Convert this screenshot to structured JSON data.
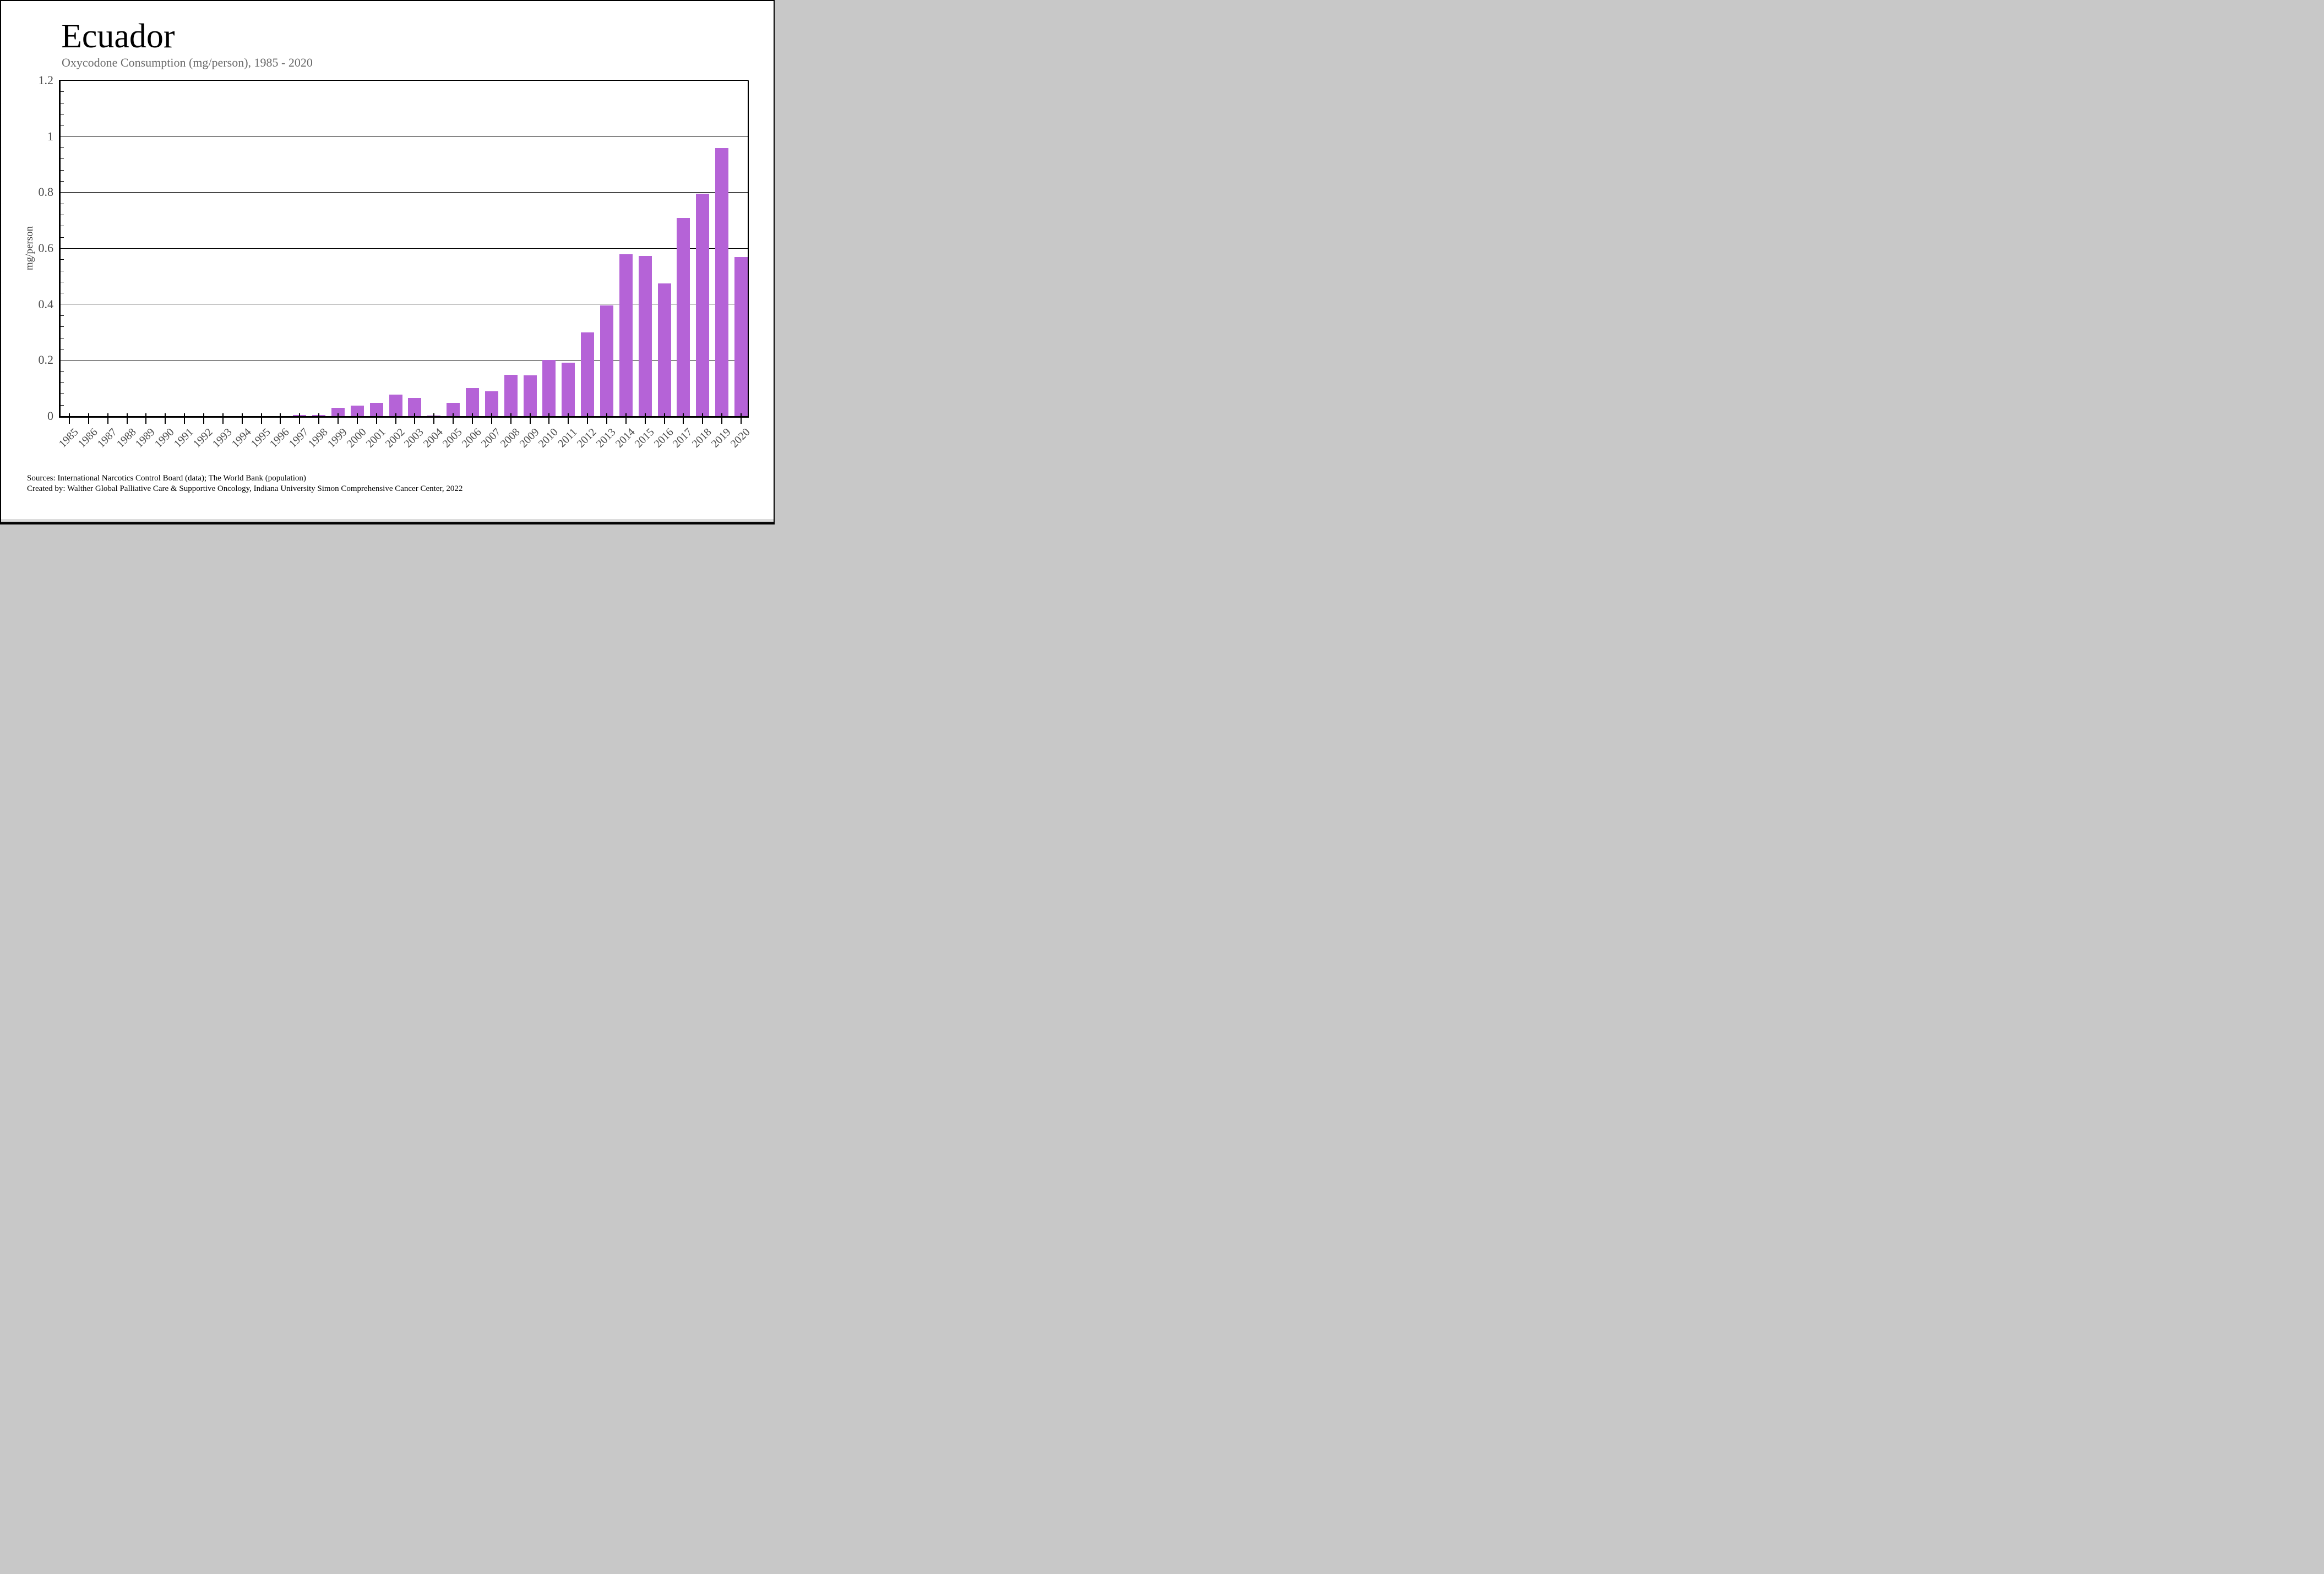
{
  "page": {
    "title": "Ecuador",
    "subtitle": "Oxycodone Consumption (mg/person), 1985 - 2020",
    "footer_line1": "Sources: International Narcotics Control Board (data); The World Bank (population)",
    "footer_line2": "Created by: Walther Global Palliative Care & Supportive Oncology, Indiana University Simon Comprehensive Cancer Center, 2022"
  },
  "colors": {
    "bar": "#b563d7",
    "subtitle_text": "#696969",
    "axis_text": "#4a4a4a",
    "grid": "#000000",
    "bottom_strip_gray": "#dcdcdc",
    "bottom_strip_black": "#0a0a0a"
  },
  "chart_data": {
    "type": "bar",
    "title": "Ecuador",
    "subtitle": "Oxycodone Consumption (mg/person), 1985 - 2020",
    "xlabel": "",
    "ylabel": "mg/person",
    "ylim": [
      0,
      1.2
    ],
    "yticks": [
      0,
      0.2,
      0.4,
      0.6,
      0.8,
      1,
      1.2
    ],
    "ytick_labels": [
      "0",
      "0.2",
      "0.4",
      "0.6",
      "0.8",
      "1",
      "1.2"
    ],
    "y_minor_step": 0.04,
    "grid": "horizontal-major",
    "legend": "none",
    "bar_color": "#b563d7",
    "categories": [
      1985,
      1986,
      1987,
      1988,
      1989,
      1990,
      1991,
      1992,
      1993,
      1994,
      1995,
      1996,
      1997,
      1998,
      1999,
      2000,
      2001,
      2002,
      2003,
      2004,
      2005,
      2006,
      2007,
      2008,
      2009,
      2010,
      2011,
      2012,
      2013,
      2014,
      2015,
      2016,
      2017,
      2018,
      2019,
      2020
    ],
    "values": [
      0,
      0,
      0,
      0,
      0,
      0,
      0,
      0,
      0,
      0,
      0,
      0,
      0.003,
      0.003,
      0.03,
      0.038,
      0.047,
      0.077,
      0.065,
      0.002,
      0.047,
      0.1,
      0.089,
      0.148,
      0.146,
      0.2,
      0.19,
      0.3,
      0.395,
      0.578,
      0.572,
      0.475,
      0.708,
      0.795,
      0.958,
      0.568
    ]
  }
}
